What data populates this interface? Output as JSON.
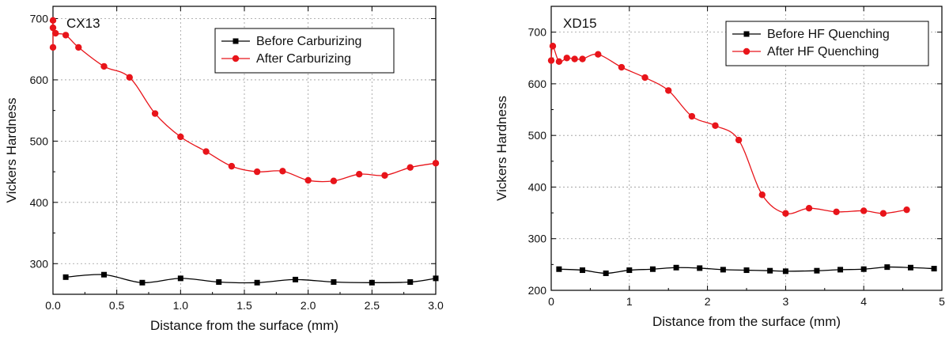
{
  "chart_data": [
    {
      "type": "line",
      "panel_label": "CX13",
      "xlabel": "Distance from the surface (mm)",
      "ylabel": "Vickers Hardness",
      "xlim": [
        0,
        3.0
      ],
      "ylim": [
        250,
        720
      ],
      "xticks": [
        "0.0",
        "0.5",
        "1.0",
        "1.5",
        "2.0",
        "2.5",
        "3.0"
      ],
      "yticks": [
        "300",
        "400",
        "500",
        "600",
        "700"
      ],
      "grid": true,
      "legend_position": "top-right",
      "series": [
        {
          "name": "Before Carburizing",
          "color": "#000000",
          "marker": "square",
          "x": [
            0.1,
            0.4,
            0.7,
            1.0,
            1.3,
            1.6,
            1.9,
            2.2,
            2.5,
            2.8,
            3.0
          ],
          "y": [
            278,
            282,
            269,
            276,
            270,
            269,
            274,
            270,
            269,
            270,
            276
          ]
        },
        {
          "name": "After Carburizing",
          "color": "#e8141a",
          "marker": "circle",
          "x": [
            0.0,
            0.0,
            0.0,
            0.02,
            0.1,
            0.2,
            0.4,
            0.6,
            0.8,
            1.0,
            1.2,
            1.4,
            1.6,
            1.8,
            2.0,
            2.2,
            2.4,
            2.6,
            2.8,
            3.0
          ],
          "y": [
            653,
            697,
            685,
            676,
            673,
            653,
            622,
            604,
            545,
            507,
            483,
            459,
            450,
            451,
            436,
            435,
            446,
            444,
            457,
            464
          ]
        }
      ]
    },
    {
      "type": "line",
      "panel_label": "XD15",
      "xlabel": "Distance from the surface (mm)",
      "ylabel": "Vickers Hardness",
      "xlim": [
        0,
        5
      ],
      "ylim": [
        200,
        750
      ],
      "xticks": [
        "0",
        "1",
        "2",
        "3",
        "4",
        "5"
      ],
      "yticks": [
        "200",
        "300",
        "400",
        "500",
        "600",
        "700"
      ],
      "grid": true,
      "legend_position": "top-right",
      "series": [
        {
          "name": "Before HF Quenching",
          "color": "#000000",
          "marker": "square",
          "x": [
            0.1,
            0.4,
            0.7,
            1.0,
            1.3,
            1.6,
            1.9,
            2.2,
            2.5,
            2.8,
            3.0,
            3.4,
            3.7,
            4.0,
            4.3,
            4.6,
            4.9
          ],
          "y": [
            241,
            239,
            233,
            239,
            241,
            244,
            243,
            240,
            239,
            238,
            237,
            238,
            240,
            241,
            245,
            244,
            242
          ]
        },
        {
          "name": "After HF Quenching",
          "color": "#e8141a",
          "marker": "circle",
          "x": [
            0.0,
            0.02,
            0.1,
            0.2,
            0.3,
            0.4,
            0.6,
            0.9,
            1.2,
            1.5,
            1.8,
            2.1,
            2.4,
            2.7,
            3.0,
            3.3,
            3.65,
            4.0,
            4.25,
            4.55
          ],
          "y": [
            645,
            673,
            643,
            650,
            648,
            648,
            657,
            632,
            612,
            587,
            537,
            519,
            491,
            385,
            349,
            359,
            352,
            354,
            349,
            356
          ]
        }
      ]
    }
  ]
}
